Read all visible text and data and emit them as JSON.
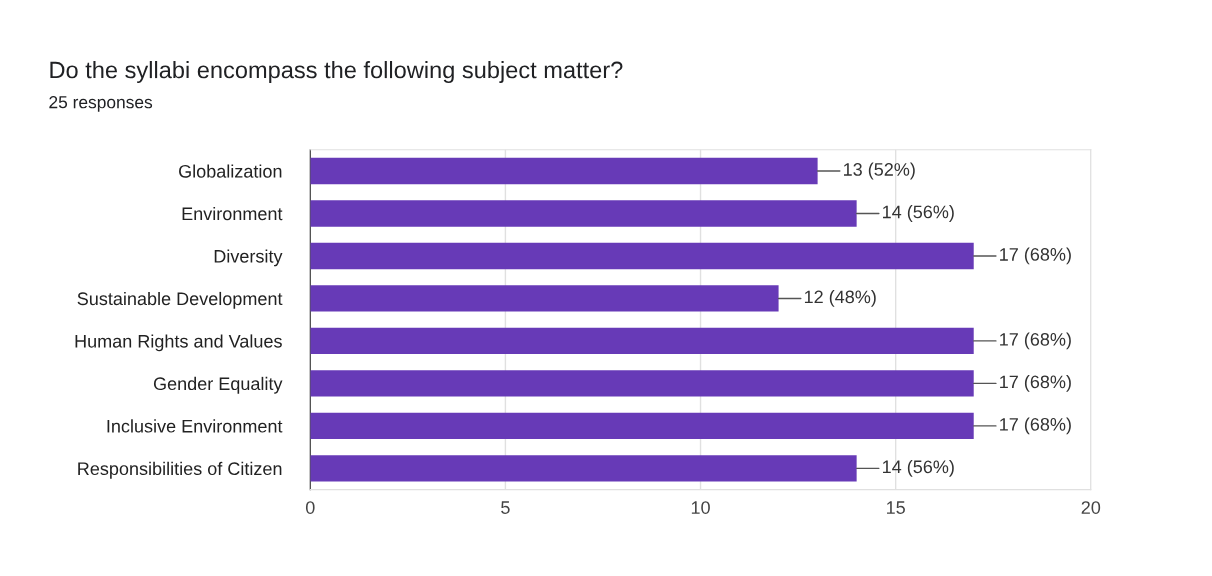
{
  "chart_data": {
    "type": "bar",
    "orientation": "horizontal",
    "title": "Do the syllabi encompass the following subject matter?",
    "subtitle": "25 responses",
    "categories": [
      "Globalization",
      "Environment",
      "Diversity",
      "Sustainable Development",
      "Human Rights and Values",
      "Gender Equality",
      "Inclusive Environment",
      "Responsibilities of Citizen"
    ],
    "values": [
      13,
      14,
      17,
      12,
      17,
      17,
      17,
      14
    ],
    "value_labels": [
      "13 (52%)",
      "14 (56%)",
      "17 (68%)",
      "12 (48%)",
      "17 (68%)",
      "17 (68%)",
      "17 (68%)",
      "14 (56%)"
    ],
    "color": "#673ab7",
    "xlim": [
      0,
      20
    ],
    "xticks": [
      0,
      5,
      10,
      15,
      20
    ],
    "grid": "x",
    "legend": false
  }
}
